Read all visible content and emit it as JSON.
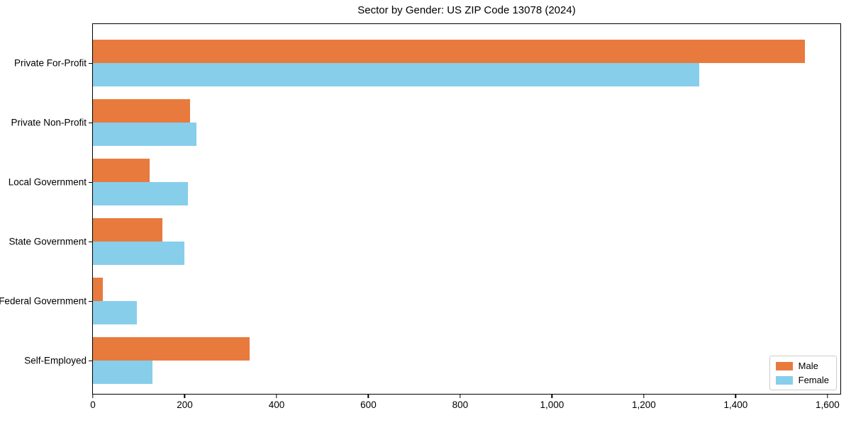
{
  "chart_data": {
    "type": "bar",
    "orientation": "horizontal",
    "title": "Sector by Gender: US ZIP Code 13078 (2024)",
    "categories": [
      "Private For-Profit",
      "Private Non-Profit",
      "Local Government",
      "State Government",
      "Federal Government",
      "Self-Employed"
    ],
    "series": [
      {
        "name": "Male",
        "color": "#E87A3E",
        "values": [
          1550,
          212,
          123,
          152,
          22,
          342
        ]
      },
      {
        "name": "Female",
        "color": "#87CEEB",
        "values": [
          1320,
          225,
          207,
          200,
          95,
          129
        ]
      }
    ],
    "xlabel": "",
    "ylabel": "",
    "xlim": [
      0,
      1628
    ],
    "xticks": [
      0,
      200,
      400,
      600,
      800,
      1000,
      1200,
      1400,
      1600
    ],
    "xtick_labels": [
      "0",
      "200",
      "400",
      "600",
      "800",
      "1,000",
      "1,200",
      "1,400",
      "1,600"
    ],
    "grid": false,
    "legend": {
      "position": "lower right",
      "entries": [
        "Male",
        "Female"
      ]
    },
    "colors": {
      "male": "#E87A3E",
      "female": "#87CEEB",
      "axis": "#000000",
      "legend_border": "#cccccc",
      "background": "#ffffff"
    }
  }
}
